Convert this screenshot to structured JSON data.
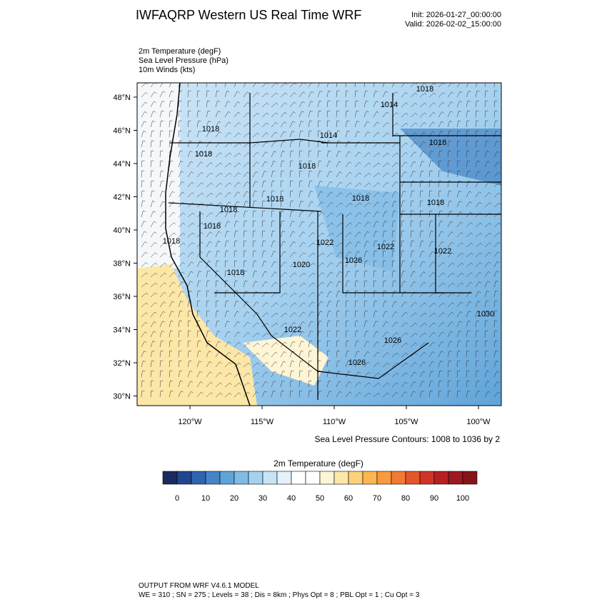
{
  "header": {
    "title": "IWFAQRP Western US Real Time WRF",
    "init": "Init: 2026-01-27_00:00:00",
    "valid": "Valid: 2026-02-02_15:00:00"
  },
  "fields": [
    "2m Temperature   (degF)",
    "Sea Level Pressure   (hPa)",
    "10m Winds   (kts)"
  ],
  "map": {
    "lat_labels": [
      "48°N",
      "46°N",
      "44°N",
      "42°N",
      "40°N",
      "38°N",
      "36°N",
      "34°N",
      "32°N",
      "30°N"
    ],
    "lon_labels": [
      "120°W",
      "115°W",
      "110°W",
      "105°W",
      "100°W"
    ],
    "isobar_labels": [
      "1018",
      "1018",
      "1018",
      "1018",
      "1018",
      "1018",
      "1018",
      "1014",
      "1018",
      "1018",
      "1022",
      "1020",
      "1026",
      "1022",
      "1022",
      "1018",
      "1018",
      "1014",
      "1018",
      "1022",
      "1026",
      "1026",
      "1030"
    ]
  },
  "contour_note": "Sea Level Pressure Contours: 1008 to 1036 by 2",
  "colorbar": {
    "title": "2m Temperature  (degF)",
    "ticks": [
      0,
      10,
      20,
      30,
      40,
      50,
      60,
      70,
      80,
      90,
      100
    ],
    "colors": [
      "#1b2a5e",
      "#22468e",
      "#2e64b0",
      "#4585c6",
      "#5fa3d8",
      "#7fbbe5",
      "#a3d2f0",
      "#c6e4f6",
      "#e3f1fb",
      "#ffffff",
      "#ffffff",
      "#fef5d6",
      "#fde7a8",
      "#fdd07a",
      "#fcb651",
      "#f99a3e",
      "#f27a33",
      "#e4552c",
      "#cf3426",
      "#b81f23",
      "#9e1820",
      "#861419"
    ]
  },
  "footer": [
    "OUTPUT FROM WRF V4.6.1 MODEL",
    "WE = 310 ; SN = 275 ; Levels = 38 ; Dis = 8km ; Phys Opt = 8 ; PBL Opt = 1 ; Cu Opt = 3"
  ]
}
